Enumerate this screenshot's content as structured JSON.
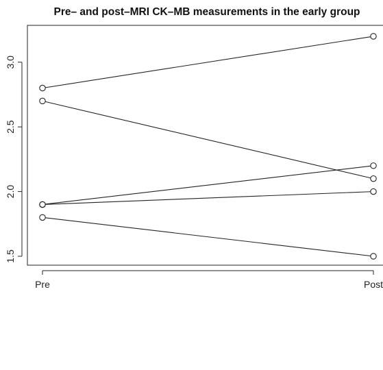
{
  "chart_data": {
    "type": "line",
    "title": "Pre– and post–MRI CK–MB measurements in the early group",
    "xlabel": "",
    "ylabel": "",
    "categories": [
      "Pre",
      "Post"
    ],
    "y_ticks": [
      "1.5",
      "2.0",
      "2.5",
      "3.0"
    ],
    "ylim": [
      1.5,
      3.2
    ],
    "grid": false,
    "series": [
      {
        "values": [
          2.8,
          3.2
        ]
      },
      {
        "values": [
          2.7,
          2.1
        ]
      },
      {
        "values": [
          1.9,
          2.2
        ]
      },
      {
        "values": [
          1.9,
          2.0
        ]
      },
      {
        "values": [
          1.8,
          1.5
        ]
      }
    ],
    "colors": {
      "line": "#222222",
      "marker": "#222222"
    }
  }
}
